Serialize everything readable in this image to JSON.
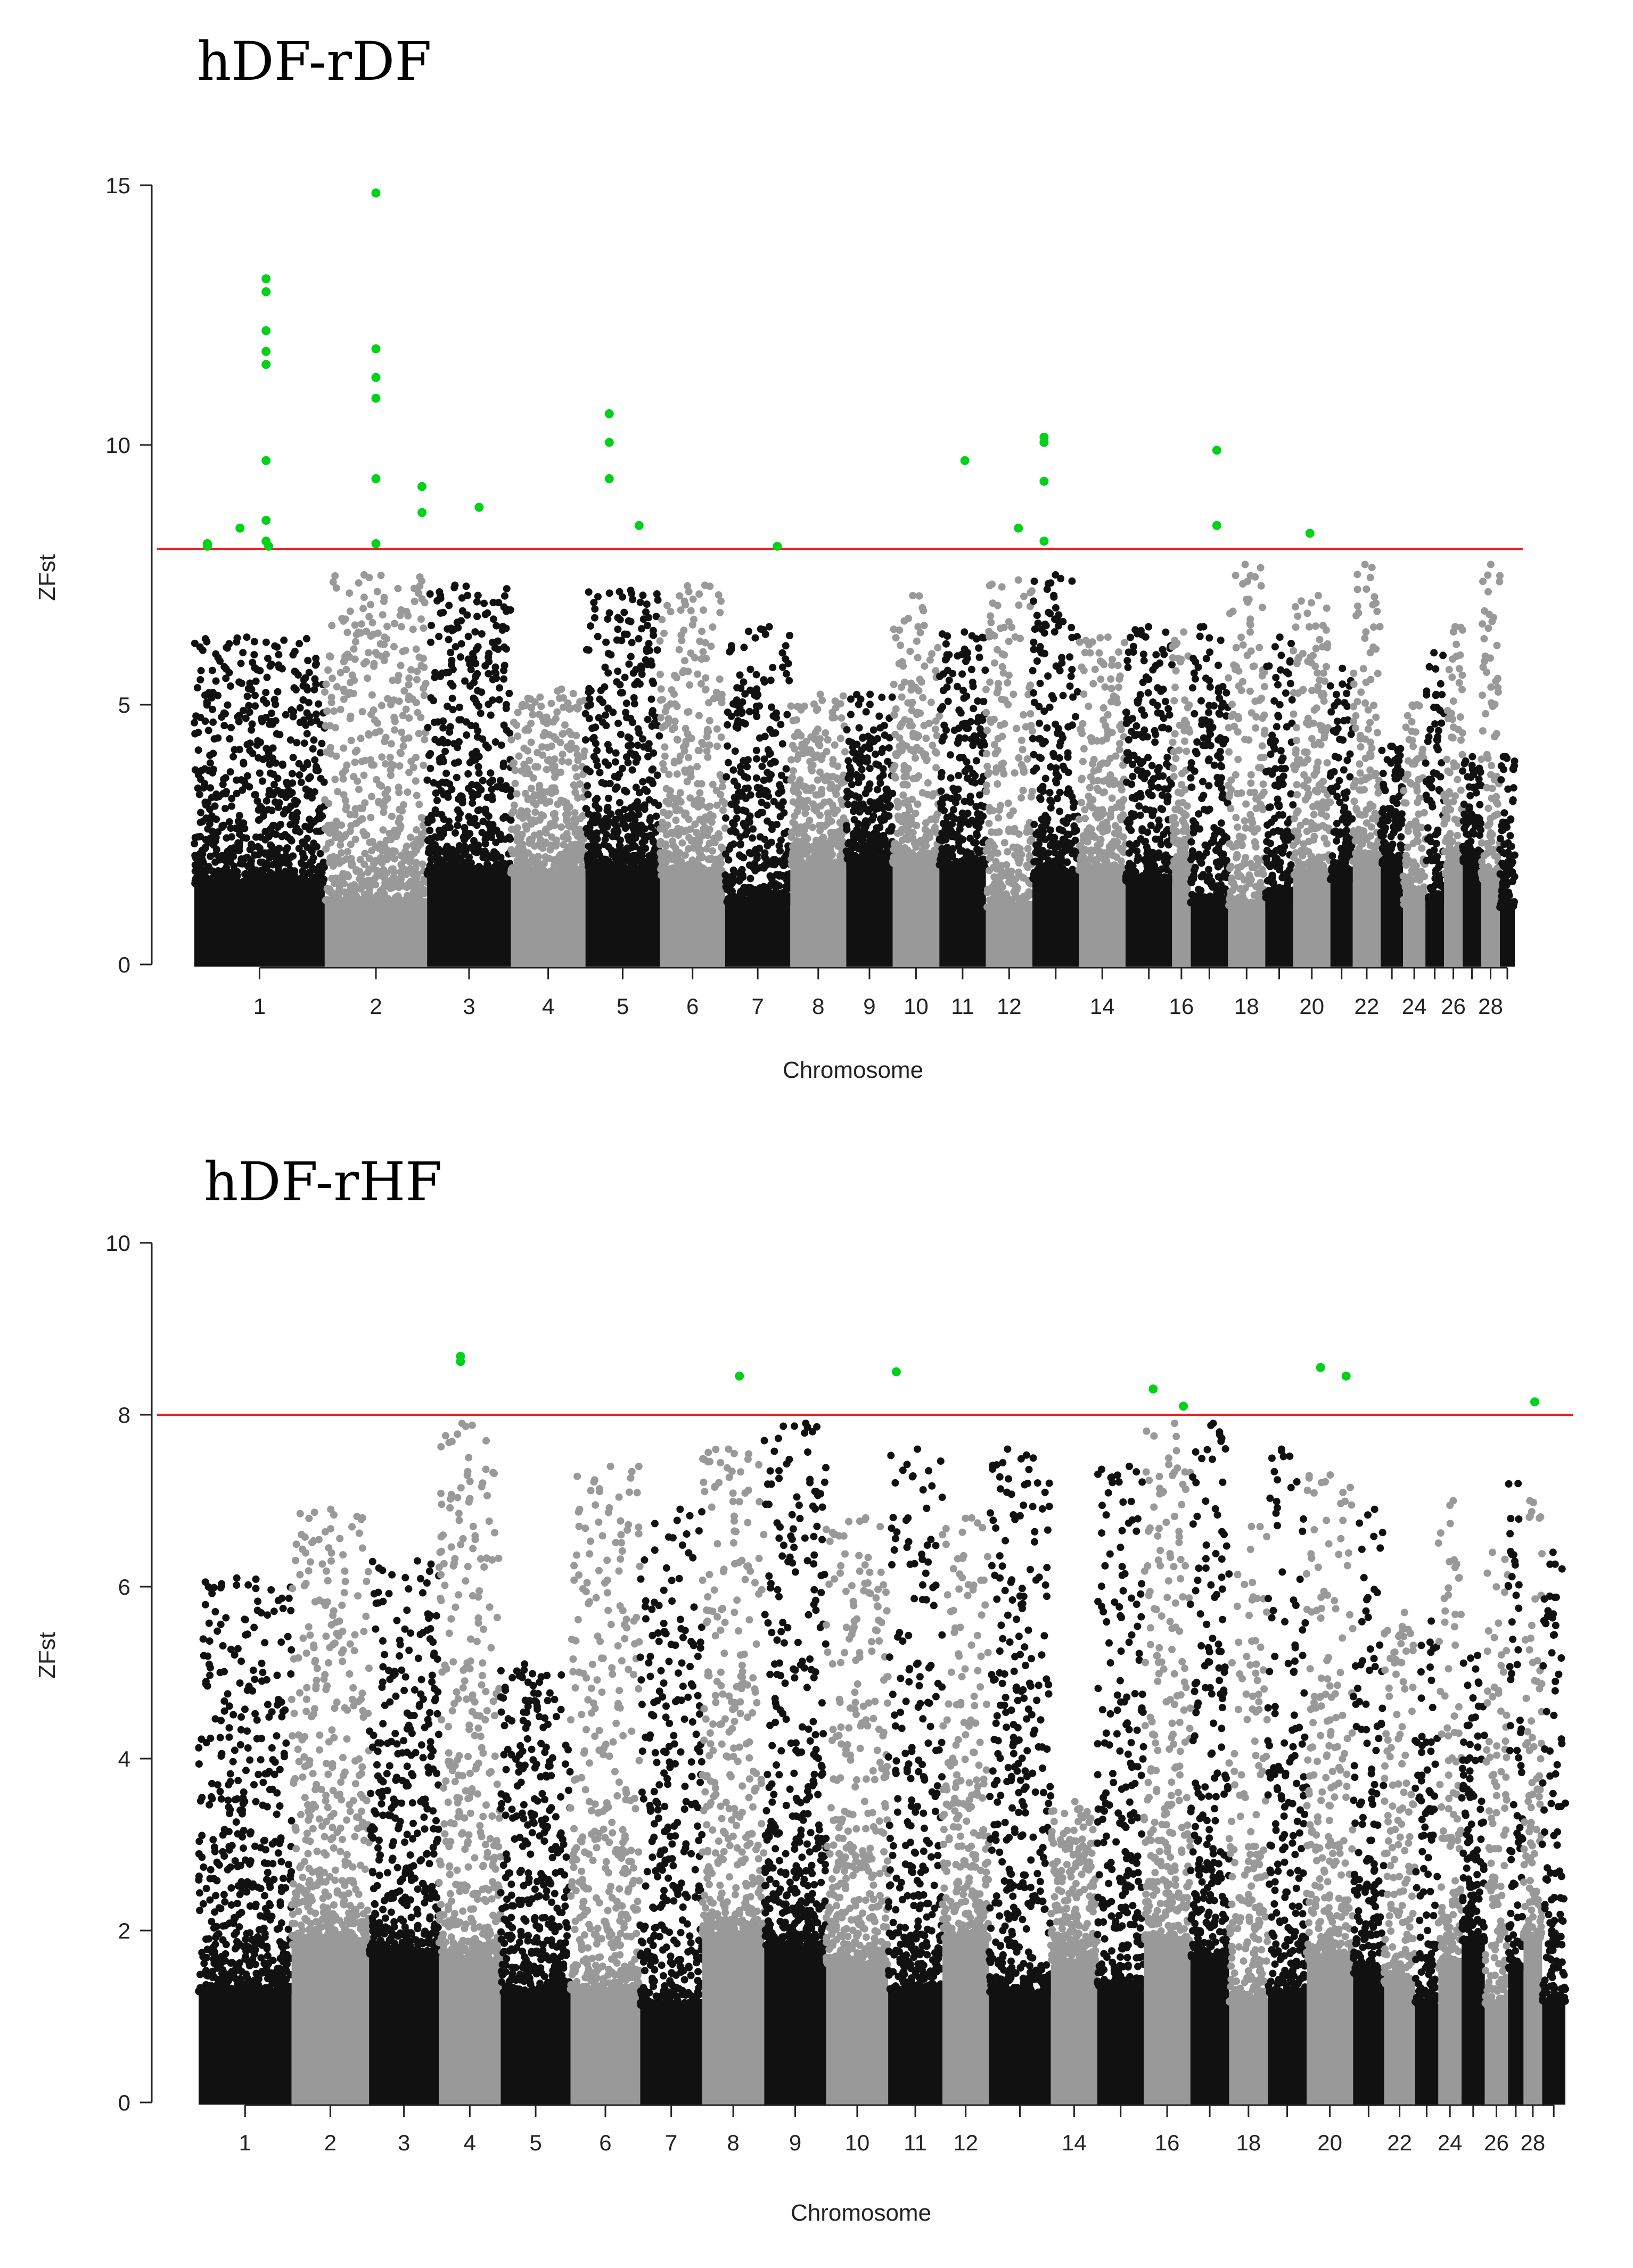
{
  "chart_data": [
    {
      "type": "scatter",
      "subtype": "manhattan",
      "title": "hDF-rDF",
      "xlabel": "Chromosome",
      "ylabel": "ZFst",
      "ylim": [
        0,
        15
      ],
      "yticks": [
        0,
        5,
        10,
        15
      ],
      "threshold": 8,
      "x_tick_labels": [
        "1",
        "2",
        "3",
        "4",
        "5",
        "6",
        "7",
        "8",
        "9",
        "10",
        "11",
        "12",
        "14",
        "16",
        "18",
        "20",
        "22",
        "24",
        "26",
        "28"
      ],
      "chromosomes": [
        {
          "chr": 1,
          "size": 7,
          "peak": 6.3
        },
        {
          "chr": 2,
          "size": 5.5,
          "peak": 7.5
        },
        {
          "chr": 3,
          "size": 4.5,
          "peak": 7.3
        },
        {
          "chr": 4,
          "size": 4,
          "peak": 5.3
        },
        {
          "chr": 5,
          "size": 4,
          "peak": 7.2
        },
        {
          "chr": 6,
          "size": 3.5,
          "peak": 7.3
        },
        {
          "chr": 7,
          "size": 3.5,
          "peak": 6.5
        },
        {
          "chr": 8,
          "size": 3,
          "peak": 5.2
        },
        {
          "chr": 9,
          "size": 2.5,
          "peak": 5.2
        },
        {
          "chr": 10,
          "size": 2.5,
          "peak": 7.1
        },
        {
          "chr": 11,
          "size": 2.5,
          "peak": 6.4
        },
        {
          "chr": 12,
          "size": 2.5,
          "peak": 7.4
        },
        {
          "chr": 13,
          "size": 2.5,
          "peak": 7.5
        },
        {
          "chr": 14,
          "size": 2.5,
          "peak": 6.3
        },
        {
          "chr": 15,
          "size": 2.5,
          "peak": 6.5
        },
        {
          "chr": 16,
          "size": 1,
          "peak": 6.4
        },
        {
          "chr": 17,
          "size": 2,
          "peak": 6.5
        },
        {
          "chr": 18,
          "size": 2,
          "peak": 7.7
        },
        {
          "chr": 19,
          "size": 1.5,
          "peak": 6.3
        },
        {
          "chr": 20,
          "size": 2,
          "peak": 7.1
        },
        {
          "chr": 21,
          "size": 1.2,
          "peak": 5.7
        },
        {
          "chr": 22,
          "size": 1.5,
          "peak": 7.7
        },
        {
          "chr": 23,
          "size": 1.2,
          "peak": 4.2
        },
        {
          "chr": 24,
          "size": 1.2,
          "peak": 5
        },
        {
          "chr": 25,
          "size": 1,
          "peak": 6
        },
        {
          "chr": 26,
          "size": 1,
          "peak": 6.5
        },
        {
          "chr": 27,
          "size": 1,
          "peak": 4
        },
        {
          "chr": 28,
          "size": 1,
          "peak": 7.7
        },
        {
          "chr": 29,
          "size": 0.8,
          "peak": 4
        }
      ],
      "outliers": [
        {
          "chr": 1,
          "pos": 0.1,
          "z": 8.1
        },
        {
          "chr": 1,
          "pos": 0.1,
          "z": 8.05
        },
        {
          "chr": 1,
          "pos": 0.35,
          "z": 8.4
        },
        {
          "chr": 1,
          "pos": 0.55,
          "z": 13.2
        },
        {
          "chr": 1,
          "pos": 0.55,
          "z": 12.95
        },
        {
          "chr": 1,
          "pos": 0.55,
          "z": 12.2
        },
        {
          "chr": 1,
          "pos": 0.55,
          "z": 11.8
        },
        {
          "chr": 1,
          "pos": 0.55,
          "z": 11.55
        },
        {
          "chr": 1,
          "pos": 0.55,
          "z": 9.7
        },
        {
          "chr": 1,
          "pos": 0.55,
          "z": 8.55
        },
        {
          "chr": 1,
          "pos": 0.55,
          "z": 8.15
        },
        {
          "chr": 1,
          "pos": 0.57,
          "z": 8.05
        },
        {
          "chr": 2,
          "pos": 0.5,
          "z": 14.85
        },
        {
          "chr": 2,
          "pos": 0.5,
          "z": 11.85
        },
        {
          "chr": 2,
          "pos": 0.5,
          "z": 11.3
        },
        {
          "chr": 2,
          "pos": 0.5,
          "z": 10.9
        },
        {
          "chr": 2,
          "pos": 0.5,
          "z": 9.35
        },
        {
          "chr": 2,
          "pos": 0.5,
          "z": 8.1
        },
        {
          "chr": 2,
          "pos": 0.95,
          "z": 9.2
        },
        {
          "chr": 2,
          "pos": 0.95,
          "z": 8.7
        },
        {
          "chr": 3,
          "pos": 0.62,
          "z": 8.8
        },
        {
          "chr": 5,
          "pos": 0.32,
          "z": 10.6
        },
        {
          "chr": 5,
          "pos": 0.32,
          "z": 10.05
        },
        {
          "chr": 5,
          "pos": 0.32,
          "z": 9.35
        },
        {
          "chr": 5,
          "pos": 0.72,
          "z": 8.45
        },
        {
          "chr": 7,
          "pos": 0.8,
          "z": 8.05
        },
        {
          "chr": 11,
          "pos": 0.55,
          "z": 9.7
        },
        {
          "chr": 12,
          "pos": 0.7,
          "z": 8.4
        },
        {
          "chr": 13,
          "pos": 0.25,
          "z": 10.15
        },
        {
          "chr": 13,
          "pos": 0.25,
          "z": 10.05
        },
        {
          "chr": 13,
          "pos": 0.25,
          "z": 9.3
        },
        {
          "chr": 13,
          "pos": 0.25,
          "z": 8.15
        },
        {
          "chr": 17,
          "pos": 0.7,
          "z": 9.9
        },
        {
          "chr": 17,
          "pos": 0.7,
          "z": 8.45
        },
        {
          "chr": 20,
          "pos": 0.45,
          "z": 8.3
        }
      ]
    },
    {
      "type": "scatter",
      "subtype": "manhattan",
      "title": "hDF-rHF",
      "xlabel": "Chromosome",
      "ylabel": "ZFst",
      "ylim": [
        0,
        10
      ],
      "yticks": [
        0,
        2,
        4,
        6,
        8,
        10
      ],
      "threshold": 8,
      "x_tick_labels": [
        "1",
        "2",
        "3",
        "4",
        "5",
        "6",
        "7",
        "8",
        "9",
        "10",
        "11",
        "12",
        "14",
        "16",
        "18",
        "20",
        "22",
        "24",
        "26",
        "28"
      ],
      "chromosomes": [
        {
          "chr": 1,
          "size": 6,
          "peak": 6.1
        },
        {
          "chr": 2,
          "size": 5,
          "peak": 6.9
        },
        {
          "chr": 3,
          "size": 4.5,
          "peak": 6.3
        },
        {
          "chr": 4,
          "size": 4,
          "peak": 7.9
        },
        {
          "chr": 5,
          "size": 4.5,
          "peak": 5.1
        },
        {
          "chr": 6,
          "size": 4.5,
          "peak": 7.4
        },
        {
          "chr": 7,
          "size": 4,
          "peak": 6.9
        },
        {
          "chr": 8,
          "size": 4,
          "peak": 7.6
        },
        {
          "chr": 9,
          "size": 4,
          "peak": 7.9
        },
        {
          "chr": 10,
          "size": 4,
          "peak": 6.8
        },
        {
          "chr": 11,
          "size": 3.5,
          "peak": 7.6
        },
        {
          "chr": 12,
          "size": 3,
          "peak": 6.8
        },
        {
          "chr": 13,
          "size": 4,
          "peak": 7.6
        },
        {
          "chr": 14,
          "size": 3,
          "peak": 3.5
        },
        {
          "chr": 15,
          "size": 3,
          "peak": 7.4
        },
        {
          "chr": 16,
          "size": 3,
          "peak": 7.9
        },
        {
          "chr": 17,
          "size": 2.5,
          "peak": 7.9
        },
        {
          "chr": 18,
          "size": 2.5,
          "peak": 6.7
        },
        {
          "chr": 19,
          "size": 2.5,
          "peak": 7.6
        },
        {
          "chr": 20,
          "size": 3,
          "peak": 7.3
        },
        {
          "chr": 21,
          "size": 2,
          "peak": 6.9
        },
        {
          "chr": 22,
          "size": 2,
          "peak": 5.7
        },
        {
          "chr": 23,
          "size": 1.5,
          "peak": 5.6
        },
        {
          "chr": 24,
          "size": 1.5,
          "peak": 7
        },
        {
          "chr": 25,
          "size": 1.5,
          "peak": 5.2
        },
        {
          "chr": 26,
          "size": 1.5,
          "peak": 6.4
        },
        {
          "chr": 27,
          "size": 1,
          "peak": 7.2
        },
        {
          "chr": 28,
          "size": 1.2,
          "peak": 7
        },
        {
          "chr": 29,
          "size": 1.5,
          "peak": 6.4
        }
      ],
      "outliers": [
        {
          "chr": 4,
          "pos": 0.35,
          "z": 8.68
        },
        {
          "chr": 4,
          "pos": 0.35,
          "z": 8.62
        },
        {
          "chr": 8,
          "pos": 0.6,
          "z": 8.45
        },
        {
          "chr": 11,
          "pos": 0.15,
          "z": 8.5
        },
        {
          "chr": 16,
          "pos": 0.2,
          "z": 8.3
        },
        {
          "chr": 16,
          "pos": 0.85,
          "z": 8.1
        },
        {
          "chr": 20,
          "pos": 0.3,
          "z": 8.55
        },
        {
          "chr": 20,
          "pos": 0.85,
          "z": 8.45
        },
        {
          "chr": 28,
          "pos": 0.6,
          "z": 8.15
        }
      ]
    }
  ],
  "colors": {
    "odd_chromosome": "#111111",
    "even_chromosome": "#999999",
    "outlier": "#00d21a",
    "threshold_line": "#f02020"
  }
}
